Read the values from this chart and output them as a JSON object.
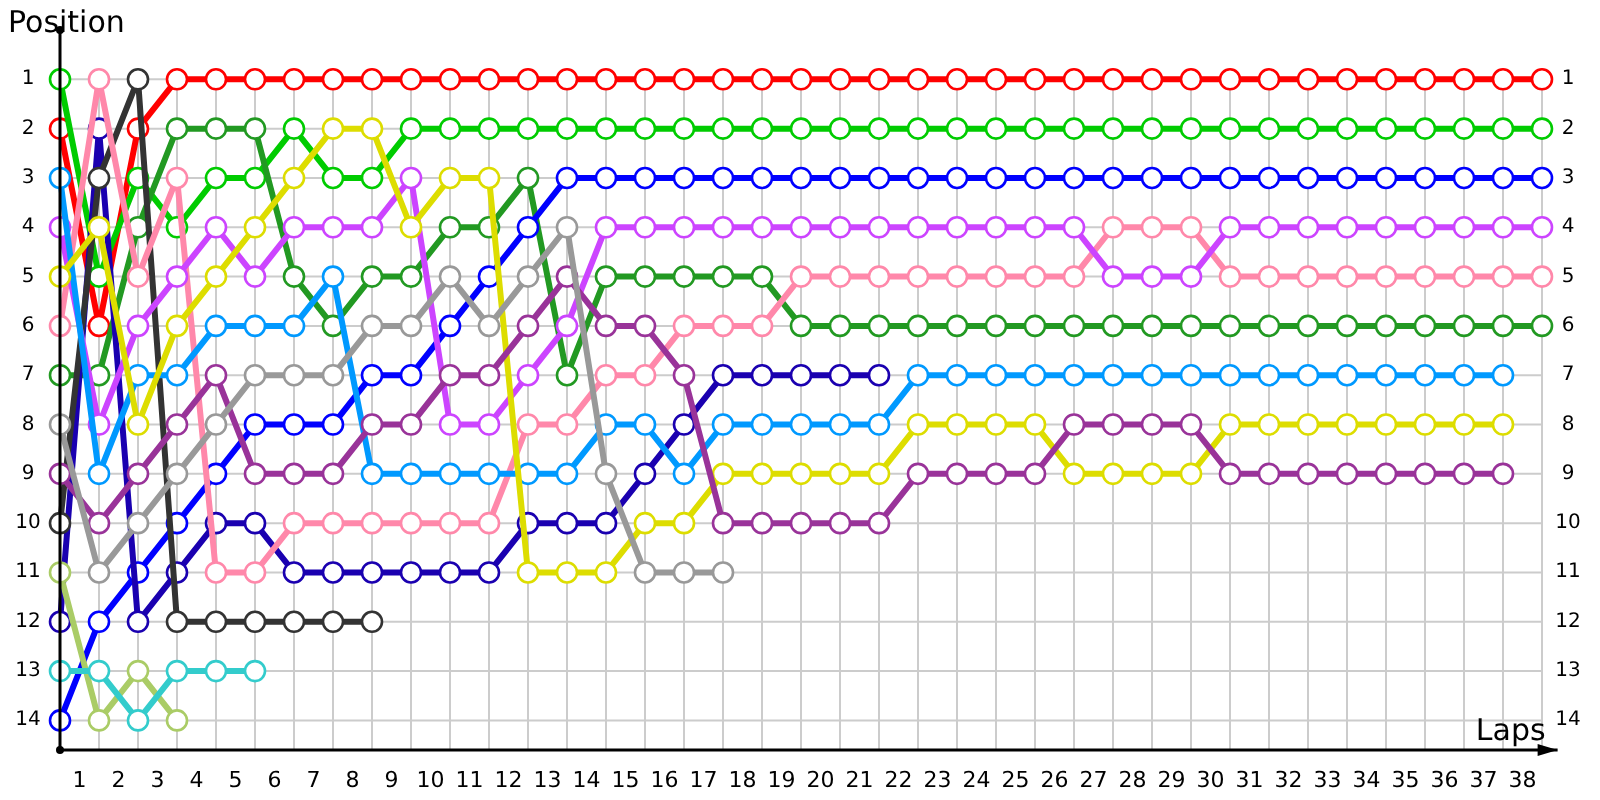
{
  "chart_data": {
    "type": "line",
    "xlabel": "Laps",
    "ylabel": "Position",
    "marker": "circle",
    "grid": true,
    "x": [
      0,
      1,
      2,
      3,
      4,
      5,
      6,
      7,
      8,
      9,
      10,
      11,
      12,
      13,
      14,
      15,
      16,
      17,
      18,
      19,
      20,
      21,
      22,
      23,
      24,
      25,
      26,
      27,
      28,
      29,
      30,
      31,
      32,
      33,
      34,
      35,
      36,
      37,
      38
    ],
    "xlim": [
      0,
      38.4
    ],
    "xticks": [
      {
        "value": 0.5,
        "label": "1"
      },
      {
        "value": 1.5,
        "label": "2"
      },
      {
        "value": 2.5,
        "label": "3"
      },
      {
        "value": 3.5,
        "label": "4"
      },
      {
        "value": 4.5,
        "label": "5"
      },
      {
        "value": 5.5,
        "label": "6"
      },
      {
        "value": 6.5,
        "label": "7"
      },
      {
        "value": 7.5,
        "label": "8"
      },
      {
        "value": 8.5,
        "label": "9"
      },
      {
        "value": 9.5,
        "label": "10"
      },
      {
        "value": 10.5,
        "label": "11"
      },
      {
        "value": 11.5,
        "label": "12"
      },
      {
        "value": 12.5,
        "label": "13"
      },
      {
        "value": 13.5,
        "label": "14"
      },
      {
        "value": 14.5,
        "label": "15"
      },
      {
        "value": 15.5,
        "label": "16"
      },
      {
        "value": 16.5,
        "label": "17"
      },
      {
        "value": 17.5,
        "label": "18"
      },
      {
        "value": 18.5,
        "label": "19"
      },
      {
        "value": 19.5,
        "label": "20"
      },
      {
        "value": 20.5,
        "label": "21"
      },
      {
        "value": 21.5,
        "label": "22"
      },
      {
        "value": 22.5,
        "label": "23"
      },
      {
        "value": 23.5,
        "label": "24"
      },
      {
        "value": 24.5,
        "label": "25"
      },
      {
        "value": 25.5,
        "label": "26"
      },
      {
        "value": 26.5,
        "label": "27"
      },
      {
        "value": 27.5,
        "label": "28"
      },
      {
        "value": 28.5,
        "label": "29"
      },
      {
        "value": 29.5,
        "label": "30"
      },
      {
        "value": 30.5,
        "label": "31"
      },
      {
        "value": 31.5,
        "label": "32"
      },
      {
        "value": 32.5,
        "label": "33"
      },
      {
        "value": 33.5,
        "label": "34"
      },
      {
        "value": 34.5,
        "label": "35"
      },
      {
        "value": 35.5,
        "label": "36"
      },
      {
        "value": 36.5,
        "label": "37"
      },
      {
        "value": 37.5,
        "label": "38"
      }
    ],
    "ylim": [
      14.6,
      0
    ],
    "yticks": [
      1,
      2,
      3,
      4,
      5,
      6,
      7,
      8,
      9,
      10,
      11,
      12,
      13,
      14
    ],
    "y2lim": [
      14.6,
      0
    ],
    "y2ticks": [
      1,
      2,
      3,
      4,
      5,
      6,
      7,
      8,
      9,
      10,
      11,
      12,
      13,
      14
    ],
    "series": [
      {
        "color": "#ff0000",
        "values": [
          2,
          6,
          2,
          1,
          1,
          1,
          1,
          1,
          1,
          1,
          1,
          1,
          1,
          1,
          1,
          1,
          1,
          1,
          1,
          1,
          1,
          1,
          1,
          1,
          1,
          1,
          1,
          1,
          1,
          1,
          1,
          1,
          1,
          1,
          1,
          1,
          1,
          1,
          1
        ]
      },
      {
        "color": "#00cc00",
        "values": [
          1,
          5,
          3,
          4,
          3,
          3,
          2,
          3,
          3,
          2,
          2,
          2,
          2,
          2,
          2,
          2,
          2,
          2,
          2,
          2,
          2,
          2,
          2,
          2,
          2,
          2,
          2,
          2,
          2,
          2,
          2,
          2,
          2,
          2,
          2,
          2,
          2,
          2,
          2
        ]
      },
      {
        "color": "#229922",
        "values": [
          7,
          7,
          4,
          2,
          2,
          2,
          5,
          6,
          5,
          5,
          4,
          4,
          3,
          7,
          5,
          5,
          5,
          5,
          5,
          6,
          6,
          6,
          6,
          6,
          6,
          6,
          6,
          6,
          6,
          6,
          6,
          6,
          6,
          6,
          6,
          6,
          6,
          6,
          6
        ]
      },
      {
        "color": "#0000ff",
        "values": [
          14,
          12,
          11,
          10,
          9,
          8,
          8,
          8,
          7,
          7,
          6,
          5,
          4,
          3,
          3,
          3,
          3,
          3,
          3,
          3,
          3,
          3,
          3,
          3,
          3,
          3,
          3,
          3,
          3,
          3,
          3,
          3,
          3,
          3,
          3,
          3,
          3,
          3,
          3
        ]
      },
      {
        "color": "#1a00b0",
        "values": [
          12,
          2,
          12,
          11,
          10,
          10,
          11,
          11,
          11,
          11,
          11,
          11,
          10,
          10,
          10,
          9,
          8,
          7,
          7,
          7,
          7,
          7,
          null,
          null,
          null,
          null,
          null,
          null,
          null,
          null,
          null,
          null,
          null,
          null,
          null,
          null,
          null,
          null,
          null
        ]
      },
      {
        "color": "#333333",
        "values": [
          10,
          3,
          1,
          12,
          12,
          12,
          12,
          12,
          12,
          null,
          null,
          null,
          null,
          null,
          null,
          null,
          null,
          null,
          null,
          null,
          null,
          null,
          null,
          null,
          null,
          null,
          null,
          null,
          null,
          null,
          null,
          null,
          null,
          null,
          null,
          null,
          null,
          null,
          null
        ]
      },
      {
        "color": "#ff88aa",
        "values": [
          6,
          1,
          5,
          3,
          11,
          11,
          10,
          10,
          10,
          10,
          10,
          10,
          8,
          8,
          7,
          7,
          6,
          6,
          6,
          5,
          5,
          5,
          5,
          5,
          5,
          5,
          5,
          4,
          4,
          4,
          5,
          5,
          5,
          5,
          5,
          5,
          5,
          5,
          5
        ]
      },
      {
        "color": "#cc44ff",
        "values": [
          4,
          8,
          6,
          5,
          4,
          5,
          4,
          4,
          4,
          3,
          8,
          8,
          7,
          6,
          4,
          4,
          4,
          4,
          4,
          4,
          4,
          4,
          4,
          4,
          4,
          4,
          4,
          5,
          5,
          5,
          4,
          4,
          4,
          4,
          4,
          4,
          4,
          4,
          4
        ]
      },
      {
        "color": "#0099ff",
        "values": [
          3,
          9,
          7,
          7,
          6,
          6,
          6,
          5,
          9,
          9,
          9,
          9,
          9,
          9,
          8,
          8,
          9,
          8,
          8,
          8,
          8,
          8,
          7,
          7,
          7,
          7,
          7,
          7,
          7,
          7,
          7,
          7,
          7,
          7,
          7,
          7,
          7,
          7,
          null
        ]
      },
      {
        "color": "#dddd00",
        "values": [
          5,
          4,
          8,
          6,
          5,
          4,
          3,
          2,
          2,
          4,
          3,
          3,
          11,
          11,
          11,
          10,
          10,
          9,
          9,
          9,
          9,
          9,
          8,
          8,
          8,
          8,
          9,
          9,
          9,
          9,
          8,
          8,
          8,
          8,
          8,
          8,
          8,
          8,
          null
        ]
      },
      {
        "color": "#993399",
        "values": [
          9,
          10,
          9,
          8,
          7,
          9,
          9,
          9,
          8,
          8,
          7,
          7,
          6,
          5,
          6,
          6,
          7,
          10,
          10,
          10,
          10,
          10,
          9,
          9,
          9,
          9,
          8,
          8,
          8,
          8,
          9,
          9,
          9,
          9,
          9,
          9,
          9,
          9,
          null
        ]
      },
      {
        "color": "#999999",
        "values": [
          8,
          11,
          10,
          9,
          8,
          7,
          7,
          7,
          6,
          6,
          5,
          6,
          5,
          4,
          9,
          11,
          11,
          11,
          null,
          null,
          null,
          null,
          null,
          null,
          null,
          null,
          null,
          null,
          null,
          null,
          null,
          null,
          null,
          null,
          null,
          null,
          null,
          null,
          null
        ]
      },
      {
        "color": "#aacc66",
        "values": [
          11,
          14,
          13,
          14,
          null,
          null,
          null,
          null,
          null,
          null,
          null,
          null,
          null,
          null,
          null,
          null,
          null,
          null,
          null,
          null,
          null,
          null,
          null,
          null,
          null,
          null,
          null,
          null,
          null,
          null,
          null,
          null,
          null,
          null,
          null,
          null,
          null,
          null,
          null
        ]
      },
      {
        "color": "#33cccc",
        "values": [
          13,
          13,
          14,
          13,
          13,
          13,
          null,
          null,
          null,
          null,
          null,
          null,
          null,
          null,
          null,
          null,
          null,
          null,
          null,
          null,
          null,
          null,
          null,
          null,
          null,
          null,
          null,
          null,
          null,
          null,
          null,
          null,
          null,
          null,
          null,
          null,
          null,
          null,
          null
        ]
      }
    ]
  }
}
